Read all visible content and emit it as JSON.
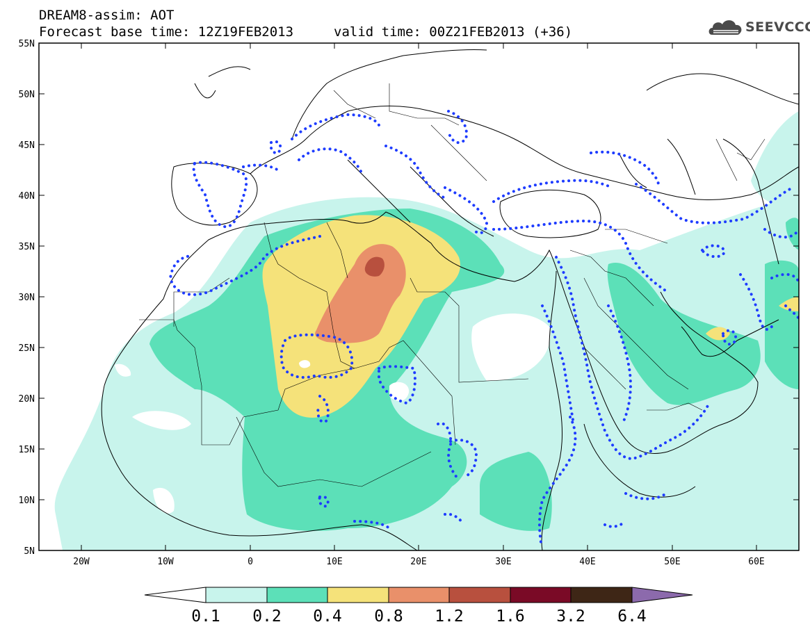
{
  "header": {
    "line1": "DREAM8-assim: AOT",
    "line2": "Forecast base time: 12Z19FEB2013",
    "line2b": "valid time: 00Z21FEB2013 (+36)"
  },
  "logo": {
    "text": "SEEVCCC",
    "icon": "cloud-icon"
  },
  "axes": {
    "lat_labels": [
      "55N",
      "50N",
      "45N",
      "40N",
      "35N",
      "30N",
      "25N",
      "20N",
      "15N",
      "10N",
      "5N"
    ],
    "lon_labels": [
      "20W",
      "10W",
      "0",
      "10E",
      "20E",
      "30E",
      "40E",
      "50E",
      "60E"
    ]
  },
  "colorbar": {
    "labels": [
      "0.1",
      "0.2",
      "0.4",
      "0.8",
      "1.2",
      "1.6",
      "3.2",
      "6.4"
    ],
    "colors": [
      "#c8f4ec",
      "#5ce0b8",
      "#f5e27a",
      "#e9906a",
      "#b8503e",
      "#7a0a26",
      "#3e2616",
      "#8c6aac"
    ]
  },
  "colors": {
    "aot_0_1": "#c8f4ec",
    "aot_0_2": "#5ce0b8",
    "aot_0_4": "#f5e27a",
    "aot_0_8": "#e9906a",
    "aot_1_2": "#b8503e",
    "contour": "#1e3cff",
    "coast": "#000000"
  }
}
